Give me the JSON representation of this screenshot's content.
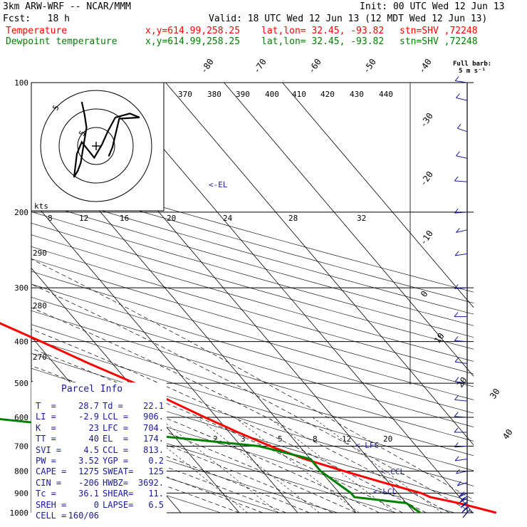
{
  "header": {
    "model": "3km ARW-WRF -- NCAR/MMM",
    "init": "Init: 00 UTC Wed 12 Jun 13",
    "fcst": "Fcst:   18 h",
    "valid": "Valid: 18 UTC Wed 12 Jun 13 (12 MDT Wed 12 Jun 13)",
    "temp_line": {
      "name": "Temperature",
      "xy": "x,y=614.99,258.25",
      "latlon": "lat,lon= 32.45, -93.82",
      "stn": "stn=SHV ,72248"
    },
    "dew_line": {
      "name": "Dewpoint temperature",
      "xy": "x,y=614.99,258.25",
      "latlon": "lat,lon= 32.45, -93.82",
      "stn": "stn=SHV ,72248"
    },
    "barb_title": "Full barb:",
    "barb_unit": "5 m s⁻¹"
  },
  "colors": {
    "temperature": "#ff0000",
    "dewpoint": "#008000",
    "header_red": "#ff0000",
    "header_green": "#008000",
    "annot_blue": "#1a1a9a",
    "barb_blue": "#1a1a9a"
  },
  "chart_data": {
    "type": "line",
    "title": "3km ARW-WRF -- NCAR/MMM",
    "y_axis": {
      "scale": "log",
      "label": "",
      "ticks": [
        "100",
        "200",
        "300",
        "400",
        "500",
        "600",
        "700",
        "800",
        "900",
        "1000"
      ]
    },
    "temperature_ticks_top": [
      "-80",
      "-70",
      "-60",
      "-50",
      "-40"
    ],
    "temperature_ticks_right": [
      "-30",
      "-20",
      "-10",
      "0",
      "10",
      "20",
      "30",
      "40"
    ],
    "theta_labels": [
      "370",
      "380",
      "390",
      "400",
      "410",
      "420",
      "430",
      "440"
    ],
    "mixing_ratio_labels_upper": [
      "8",
      "12",
      "16",
      "20",
      "24",
      "28",
      "32"
    ],
    "mixing_ratio_labels_lower": [
      "2",
      "3",
      "5",
      "8",
      "12",
      "20"
    ],
    "theta_e_labels": [
      "290",
      "280",
      "270"
    ],
    "annotations": [
      "<-EL",
      "<-LFC",
      "<-CCL",
      "<-LCL"
    ],
    "series": [
      {
        "name": "Temperature",
        "pressure": [
          1000,
          950,
          920,
          900,
          850,
          800,
          750,
          700,
          650,
          600,
          550,
          500,
          450,
          400,
          350,
          300,
          250,
          200,
          175,
          150,
          140,
          130,
          100
        ],
        "values": [
          34,
          29,
          25,
          24,
          19,
          14,
          9,
          5,
          1.5,
          -2,
          -5.5,
          -9,
          -14,
          -19,
          -25,
          -31,
          -39,
          -48,
          -54,
          -61,
          -63,
          -60,
          -52
        ]
      },
      {
        "name": "Dewpoint temperature",
        "pressure": [
          1000,
          950,
          920,
          900,
          850,
          800,
          750,
          700,
          660,
          640,
          600,
          500,
          400,
          380,
          340,
          300,
          270,
          250,
          220,
          200,
          160,
          130,
          100
        ],
        "values": [
          21,
          20,
          12,
          12,
          11,
          10,
          10,
          3,
          -14,
          -22,
          -40,
          -34,
          -35,
          -37,
          -48,
          -46,
          -51,
          -53,
          -63,
          -66,
          -76,
          -82,
          -90
        ]
      }
    ],
    "wind_barbs_ms": [
      {
        "p": 1000,
        "spd": 25,
        "dir": 200
      },
      {
        "p": 975,
        "spd": 20,
        "dir": 205
      },
      {
        "p": 950,
        "spd": 17,
        "dir": 210
      },
      {
        "p": 925,
        "spd": 13,
        "dir": 215
      },
      {
        "p": 900,
        "spd": 8,
        "dir": 220
      },
      {
        "p": 850,
        "spd": 4,
        "dir": 230
      },
      {
        "p": 800,
        "spd": 3,
        "dir": 240
      },
      {
        "p": 750,
        "spd": 3,
        "dir": 250
      },
      {
        "p": 700,
        "spd": 4,
        "dir": 260
      },
      {
        "p": 650,
        "spd": 5,
        "dir": 270
      },
      {
        "p": 600,
        "spd": 4,
        "dir": 280
      },
      {
        "p": 550,
        "spd": 5,
        "dir": 285
      },
      {
        "p": 500,
        "spd": 6,
        "dir": 290
      },
      {
        "p": 450,
        "spd": 6,
        "dir": 290
      },
      {
        "p": 400,
        "spd": 5,
        "dir": 280
      },
      {
        "p": 350,
        "spd": 4,
        "dir": 270
      },
      {
        "p": 300,
        "spd": 5,
        "dir": 260
      },
      {
        "p": 250,
        "spd": 6,
        "dir": 250
      },
      {
        "p": 220,
        "spd": 5,
        "dir": 240
      },
      {
        "p": 200,
        "spd": 4,
        "dir": 260
      },
      {
        "p": 170,
        "spd": 5,
        "dir": 280
      },
      {
        "p": 150,
        "spd": 6,
        "dir": 300
      },
      {
        "p": 130,
        "spd": 7,
        "dir": 310
      },
      {
        "p": 110,
        "spd": 6,
        "dir": 300
      },
      {
        "p": 100,
        "spd": 5,
        "dir": 290
      }
    ],
    "hodograph": {
      "rings_label": "kts",
      "ring_labels": [
        "5",
        "5"
      ],
      "points_uv": [
        [
          -1.5,
          4.5
        ],
        [
          -1.2,
          3.5
        ],
        [
          -1.0,
          2.5
        ],
        [
          -1.3,
          1.2
        ],
        [
          -1.6,
          -0.2
        ],
        [
          -1.9,
          -0.8
        ],
        [
          -2.3,
          -1.3
        ],
        [
          -2.0,
          0.5
        ],
        [
          -1.5,
          1.4
        ],
        [
          -0.2,
          0.2
        ],
        [
          0.6,
          1.2
        ],
        [
          1.2,
          2.2
        ],
        [
          2.0,
          3.3
        ],
        [
          3.5,
          3.6
        ],
        [
          4.5,
          3.3
        ],
        [
          2.4,
          3.2
        ],
        [
          1.7,
          1.0
        ],
        [
          1.3,
          0.3
        ]
      ]
    }
  },
  "parcel_info": {
    "title": "Parcel Info",
    "rows": [
      {
        "k1": "T  =",
        "v1": "28.7",
        "k2": "Td =",
        "v2": "22.1"
      },
      {
        "k1": "LI =",
        "v1": "-2.9",
        "k2": "LCL =",
        "v2": "906."
      },
      {
        "k1": "K  =",
        "v1": "23",
        "k2": "LFC =",
        "v2": "704."
      },
      {
        "k1": "TT =",
        "v1": "40",
        "k2": "EL  =",
        "v2": "174."
      },
      {
        "k1": "SVI =",
        "v1": "4.5",
        "k2": "CCL =",
        "v2": "813."
      },
      {
        "k1": "PW =",
        "v1": "3.52",
        "k2": "YGP =",
        "v2": "0.2"
      },
      {
        "k1": "CAPE =",
        "v1": "1275",
        "k2": "SWEAT=",
        "v2": "125"
      },
      {
        "k1": "CIN =",
        "v1": "-206",
        "k2": "HWBZ=",
        "v2": "3692."
      },
      {
        "k1": "Tc =",
        "v1": "36.1",
        "k2": "SHEAR=",
        "v2": "11."
      },
      {
        "k1": "SREH =",
        "v1": "0",
        "k2": "LAPSE=",
        "v2": "6.5"
      },
      {
        "k1": "CELL =",
        "v1": "160/06",
        "k2": "",
        "v2": ""
      }
    ]
  }
}
